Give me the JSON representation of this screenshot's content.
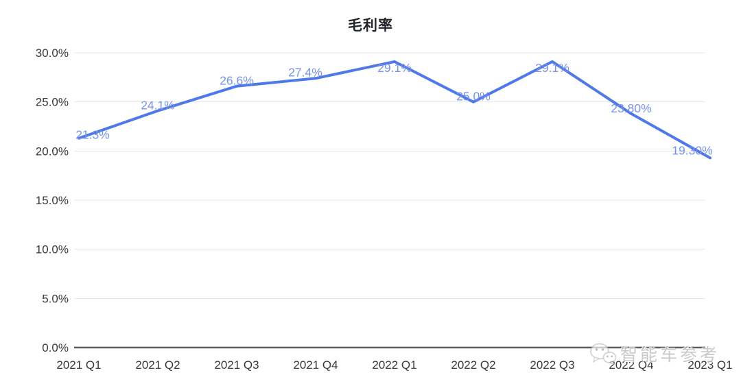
{
  "page": {
    "background": "#ffffff"
  },
  "chart_data": {
    "type": "line",
    "title": "毛利率",
    "categories": [
      "2021 Q1",
      "2021 Q2",
      "2021 Q3",
      "2021 Q4",
      "2022 Q1",
      "2022 Q2",
      "2022 Q3",
      "2022 Q4",
      "2023 Q1"
    ],
    "values": [
      21.3,
      24.1,
      26.6,
      27.4,
      29.1,
      25.0,
      29.1,
      23.8,
      19.3
    ],
    "point_labels": [
      "21.3%",
      "24.1%",
      "26.6%",
      "27.4%",
      "29.1%",
      "25.0%",
      "29.1%",
      "23.80%",
      "19.30%"
    ],
    "xlabel": "",
    "ylabel": "",
    "ylim": [
      0,
      30
    ],
    "yticks": [
      {
        "value": 30,
        "label": "30.0%"
      },
      {
        "value": 25,
        "label": "25.0%"
      },
      {
        "value": 20,
        "label": "20.0%"
      },
      {
        "value": 15,
        "label": "15.0%"
      },
      {
        "value": 10,
        "label": "10.0%"
      },
      {
        "value": 5,
        "label": "5.0%"
      },
      {
        "value": 0,
        "label": "0.0%"
      }
    ],
    "grid": true,
    "legend_position": "none",
    "colors": {
      "line": "#4f78e8",
      "point_label": "#7693ec",
      "grid": "#e5e5e5",
      "axis": "#5a5e63",
      "tick_text": "#38393e",
      "title": "#22252b"
    }
  },
  "watermark": {
    "text": "智能车参考",
    "icon": "wechat-icon"
  }
}
